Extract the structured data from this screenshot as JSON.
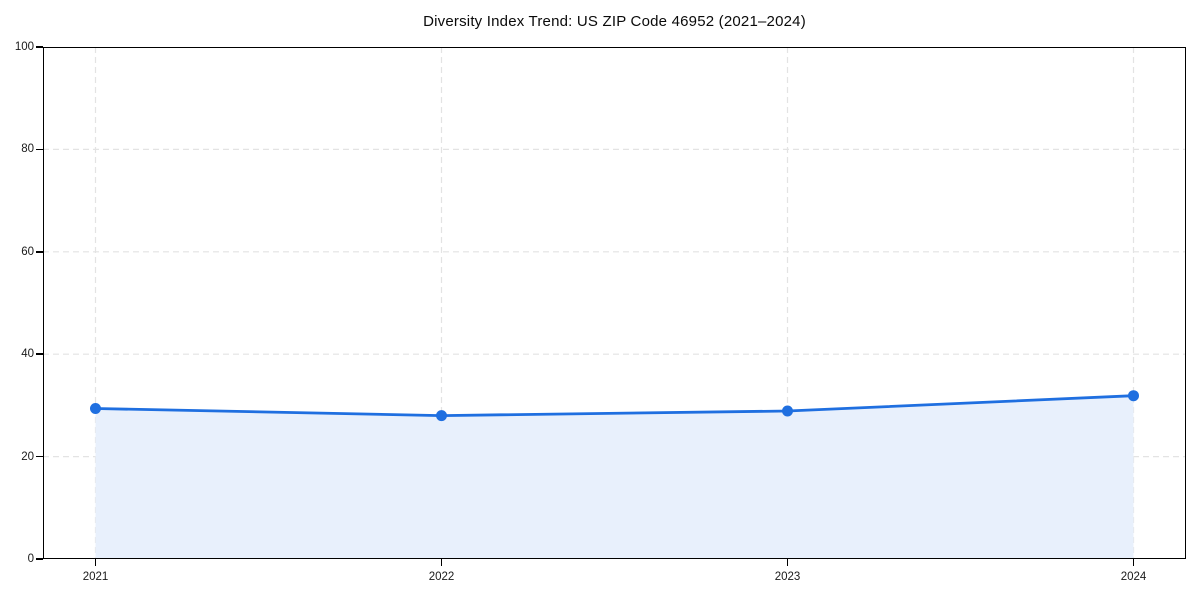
{
  "chart_data": {
    "type": "area",
    "title": "Diversity Index Trend: US ZIP Code 46952 (2021–2024)",
    "x": [
      "2021",
      "2022",
      "2023",
      "2024"
    ],
    "series": [
      {
        "name": "Diversity Index",
        "values": [
          29.4,
          28.0,
          28.9,
          31.9
        ]
      }
    ],
    "xlabel": "",
    "ylabel": "",
    "ylim": [
      0,
      100
    ],
    "yticks": [
      0,
      20,
      40,
      60,
      80,
      100
    ],
    "grid": "dashed",
    "legend_position": "none",
    "marker": "circle",
    "colors": {
      "line": "#1f6fe0",
      "marker": "#1f6fe0",
      "area_fill": "#e8f0fc",
      "gridline": "#e3e3e3",
      "spine": "#000000",
      "text": "#1a1a1a"
    }
  }
}
